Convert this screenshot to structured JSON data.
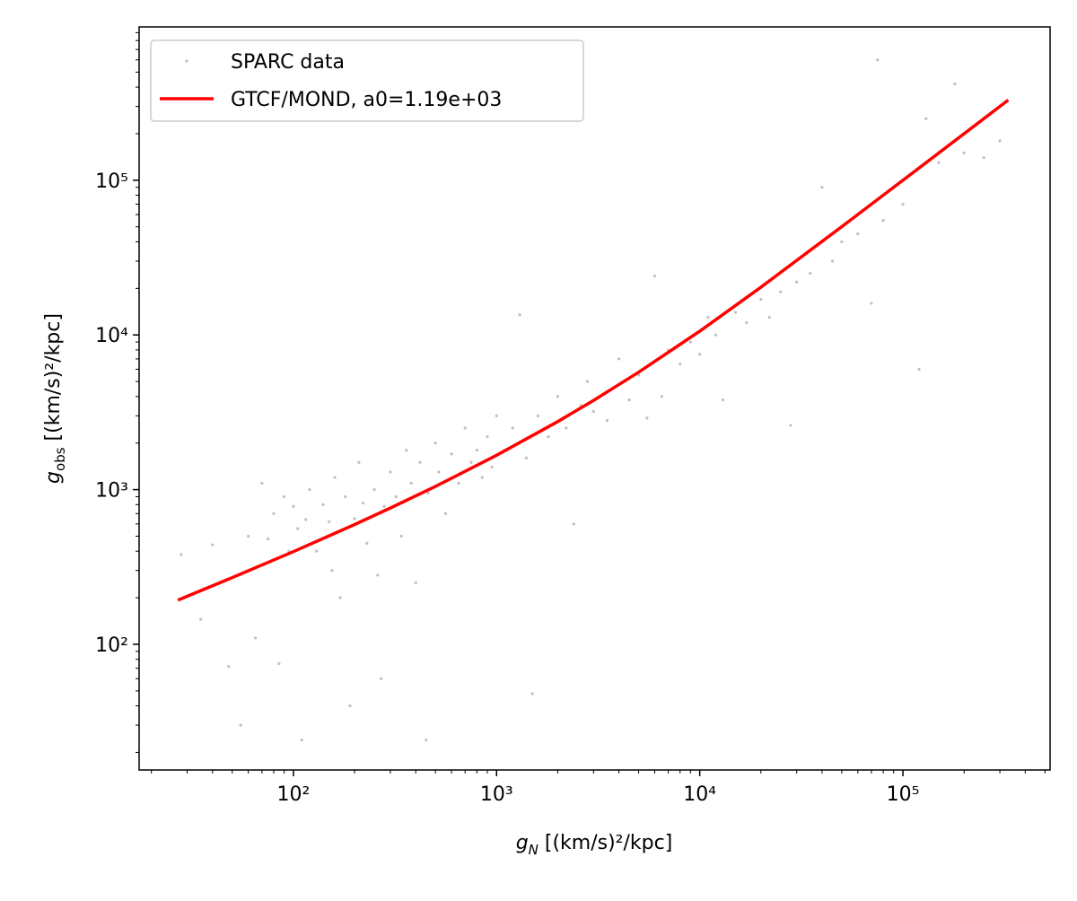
{
  "chart_data": {
    "type": "scatter",
    "xlabel": {
      "symbol": "g",
      "sub": "N",
      "unit": " [(km/s)²/kpc]"
    },
    "ylabel": {
      "symbol": "g",
      "sub": "obs",
      "unit": " [(km/s)²/kpc]"
    },
    "xscale": "log",
    "yscale": "log",
    "xlim": [
      17.4,
      530000
    ],
    "ylim": [
      15.4,
      980000
    ],
    "xticks": [
      {
        "value": 100,
        "label": "10²"
      },
      {
        "value": 1000,
        "label": "10³"
      },
      {
        "value": 10000,
        "label": "10⁴"
      },
      {
        "value": 100000,
        "label": "10⁵"
      }
    ],
    "yticks": [
      {
        "value": 100,
        "label": "10²"
      },
      {
        "value": 1000,
        "label": "10³"
      },
      {
        "value": 10000,
        "label": "10⁴"
      },
      {
        "value": 100000,
        "label": "10⁵"
      }
    ],
    "xminorticks": [
      20,
      30,
      40,
      50,
      60,
      70,
      80,
      90,
      200,
      300,
      400,
      500,
      600,
      700,
      800,
      900,
      2000,
      3000,
      4000,
      5000,
      6000,
      7000,
      8000,
      9000,
      20000,
      30000,
      40000,
      50000,
      60000,
      70000,
      80000,
      90000,
      200000,
      300000,
      400000,
      500000
    ],
    "yminorticks": [
      20,
      30,
      40,
      50,
      60,
      70,
      80,
      90,
      200,
      300,
      400,
      500,
      600,
      700,
      800,
      900,
      2000,
      3000,
      4000,
      5000,
      6000,
      7000,
      8000,
      9000,
      20000,
      30000,
      40000,
      50000,
      60000,
      70000,
      80000,
      90000,
      200000,
      300000,
      400000,
      500000,
      600000,
      700000,
      800000,
      900000
    ],
    "legend": "upper left",
    "series": [
      {
        "name": "SPARC data",
        "type": "scatter",
        "color": "#000000",
        "x": [
          28,
          35,
          40,
          48,
          55,
          60,
          65,
          70,
          75,
          80,
          85,
          90,
          95,
          100,
          105,
          110,
          115,
          120,
          130,
          140,
          150,
          155,
          160,
          170,
          180,
          190,
          200,
          210,
          220,
          230,
          250,
          260,
          270,
          280,
          300,
          320,
          340,
          360,
          380,
          400,
          420,
          450,
          460,
          500,
          520,
          560,
          600,
          650,
          700,
          750,
          800,
          850,
          900,
          950,
          1000,
          1100,
          1200,
          1300,
          1400,
          1500,
          1600,
          1800,
          2000,
          2200,
          2400,
          2600,
          2800,
          3000,
          3500,
          4000,
          4500,
          5000,
          5500,
          6000,
          6500,
          7000,
          8000,
          9000,
          10000,
          11000,
          12000,
          13000,
          15000,
          17000,
          20000,
          22000,
          25000,
          28000,
          30000,
          35000,
          40000,
          45000,
          50000,
          60000,
          70000,
          75000,
          80000,
          100000,
          120000,
          130000,
          150000,
          180000,
          200000,
          250000,
          300000
        ],
        "values": [
          380,
          145,
          440,
          72,
          30,
          500,
          110,
          1100,
          480,
          700,
          75,
          900,
          400,
          780,
          560,
          24,
          640,
          1000,
          400,
          800,
          620,
          300,
          1200,
          200,
          900,
          40,
          650,
          1500,
          820,
          450,
          1000,
          280,
          60,
          780,
          1300,
          900,
          500,
          1800,
          1100,
          250,
          1500,
          24,
          950,
          2000,
          1300,
          700,
          1700,
          1100,
          2500,
          1500,
          1800,
          1200,
          2200,
          1400,
          3000,
          1800,
          2500,
          13500,
          1600,
          48,
          3000,
          2200,
          4000,
          2500,
          600,
          3500,
          5000,
          3200,
          2800,
          7000,
          3800,
          5500,
          2900,
          24000,
          4000,
          8000,
          6500,
          9000,
          7500,
          13000,
          10000,
          3800,
          14000,
          12000,
          17000,
          13000,
          19000,
          2600,
          22000,
          25000,
          90000,
          30000,
          40000,
          45000,
          16000,
          600000,
          55000,
          70000,
          6000,
          250000,
          130000,
          420000,
          150000,
          140000,
          180000
        ]
      },
      {
        "name": "GTCF/MOND, a0=1.19e+03",
        "type": "line",
        "color": "#ff0000",
        "x": [
          27,
          50,
          100,
          200,
          300,
          500,
          1000,
          2000,
          3000,
          5000,
          10000,
          20000,
          50000,
          100000,
          330000
        ],
        "values": [
          193,
          270,
          397,
          595,
          760,
          1048,
          1667,
          2753,
          3771,
          5739,
          10583,
          20338,
          50077,
          100000,
          330000
        ]
      }
    ]
  }
}
